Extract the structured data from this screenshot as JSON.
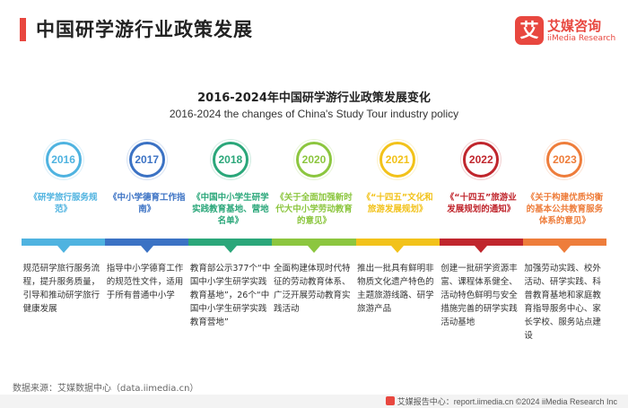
{
  "header": {
    "title": "中国研学游行业政策发展"
  },
  "logo": {
    "badge": "艾",
    "name_cn": "艾媒咨询",
    "name_en": "iiMedia Research"
  },
  "subtitle": {
    "cn": "2016-2024年中国研学游行业政策发展变化",
    "en": "2016-2024 the changes of China's Study Tour industry policy"
  },
  "timeline": [
    {
      "year": "2016",
      "color": "#4fb3e0",
      "policy": "《研学旅行服务规范》",
      "desc": "规范研学旅行服务流程，提升服务质量，引导和推动研学旅行健康发展"
    },
    {
      "year": "2017",
      "color": "#3b72c4",
      "policy": "《中小学德育工作指南》",
      "desc": "指导中小学德育工作的规范性文件，适用于所有普通中小学"
    },
    {
      "year": "2018",
      "color": "#2ba77a",
      "policy": "《中国中小学生研学实践教育基地、营地名单》",
      "desc": "教育部公示377个“中国中小学生研学实践教育基地”，26个“中国中小学生研学实践教育营地”"
    },
    {
      "year": "2020",
      "color": "#8cc63f",
      "policy": "《关于全面加强新时代大中小学劳动教育的意见》",
      "desc": "全面构建体现时代特征的劳动教育体系、广泛开展劳动教育实践活动"
    },
    {
      "year": "2021",
      "color": "#f2c21a",
      "policy": "《“十四五”文化和旅游发展规划》",
      "desc": "推出一批具有鲜明非物质文化遗产特色的主题旅游线路、研学旅游产品"
    },
    {
      "year": "2022",
      "color": "#c0262d",
      "policy": "《“十四五”旅游业发展规划的通知》",
      "desc": "创建一批研学资源丰富、课程体系健全、活动特色鲜明与安全措施完善的研学实践活动基地"
    },
    {
      "year": "2023",
      "color": "#ee7d3b",
      "policy": "《关于构建优质均衡的基本公共教育服务体系的意见》",
      "desc": "加强劳动实践、校外活动、研学实践、科普教育基地和家庭教育指导服务中心、家长学校、服务站点建设"
    }
  ],
  "source": "数据来源：艾媒数据中心（data.iimedia.cn）",
  "footer": "艾媒报告中心：report.iimedia.cn   ©2024  iiMedia Research  Inc"
}
